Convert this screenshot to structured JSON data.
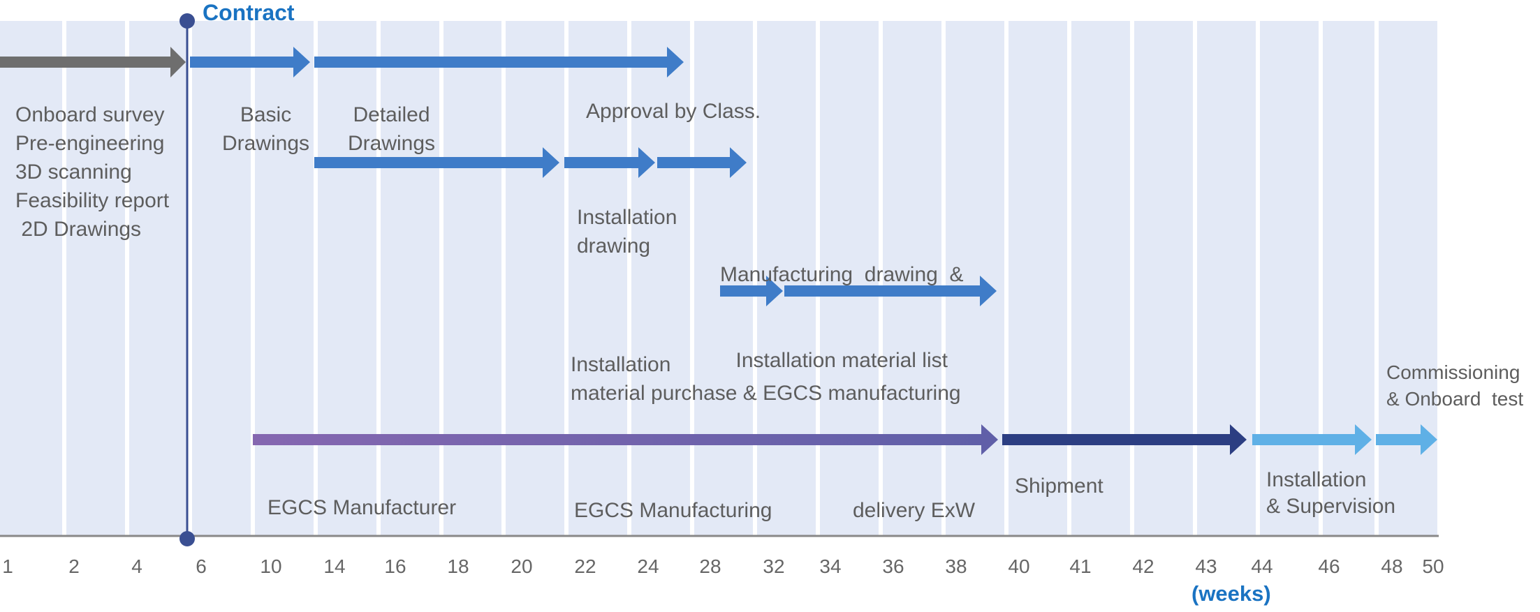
{
  "milestone": {
    "label": "Contract"
  },
  "axis": {
    "unit_label": "(weeks)",
    "ticks": [
      "1",
      "2",
      "4",
      "6",
      "10",
      "14",
      "16",
      "18",
      "20",
      "22",
      "24",
      "28",
      "32",
      "34",
      "36",
      "38",
      "40",
      "41",
      "42",
      "43",
      "44",
      "46",
      "48",
      "50"
    ]
  },
  "labels": {
    "onboard": [
      "Onboard survey",
      "Pre-engineering",
      "3D scanning",
      "Feasibility report",
      " 2D Drawings"
    ],
    "basic": [
      "Basic",
      "Drawings"
    ],
    "detailed": [
      "Detailed",
      "Drawings"
    ],
    "approval": "Approval by Class.",
    "installation_drawing": [
      "Installation",
      "drawing"
    ],
    "manufacturing_drawing": [
      "Manufacturing  drawing  &",
      "Installation material list"
    ],
    "purchase": [
      "Installation",
      "material purchase & EGCS manufacturing"
    ],
    "commissioning": [
      "Commissioning",
      "& Onboard  test"
    ],
    "egcs_manufacturer": "EGCS Manufacturer",
    "egcs_manufacturing": "EGCS Manufacturing",
    "delivery": "delivery ExW",
    "shipment": "Shipment",
    "installation_supervision": [
      "Installation",
      "& Supervision"
    ]
  },
  "colors": {
    "background_band": "#e3e9f6",
    "stripe": "#ffffff",
    "grey_arrow": "#6e6e6e",
    "blue_arrow": "#3f7cc8",
    "purple_arrow_start": "#8567b0",
    "purple_arrow_end": "#5f5fa8",
    "navy_arrow": "#2c3e82",
    "light_blue_arrow": "#5fb0e6",
    "milestone": "#3a4f92",
    "axis": "#888888",
    "text": "#5d5d5d",
    "accent": "#1a73c2"
  }
}
